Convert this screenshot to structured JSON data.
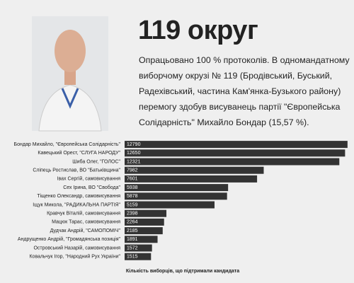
{
  "chart_data": {
    "type": "bar",
    "orientation": "horizontal",
    "title": "119 округ",
    "description": "Опрацьовано 100 % протоколів. В одномандатному виборчому окрузі № 119 (Бродівський, Буський, Радехівський, частина Кам'янка-Бузького району) перемогу здобув висуванець партії \"Європейська Солідарність\" Михайло Бондар (15,57 %).",
    "x_label": "Кількість виборців, що підтримали кандидата",
    "categories": [
      "Бондар Михайло, \"Європейська Солідарність\"",
      "Кавецький Орест, \"СЛУГА НАРОДУ\"",
      "Шиба Олег, \"ГОЛОС\"",
      "Сліпець Ростислав, ВО \"Батьківщина\"",
      "Івах Сергій, самовисування",
      "Сех Ірина, ВО \"Свобода\"",
      "Тіщенко Олександр, самовисування",
      "Іщук Микола, \"РАДИКАЛЬНА ПАРТІЯ\"",
      "Кравчук Віталій, самовисування",
      "Мацюк Тарас, самовисування",
      "Дудчак Андрій, \"САМОПОМІЧ\"",
      "Андрущенко Андрій, \"Громадянська позиція\"",
      "Островський Назарій, самовисування",
      "Ковальчук Ігор, \"Народний Рух України\""
    ],
    "values": [
      12790,
      12650,
      12321,
      7982,
      7601,
      5938,
      5878,
      5159,
      2398,
      2264,
      2185,
      1891,
      1572,
      1515
    ],
    "color": "#333333",
    "xlim": [
      0,
      13000
    ]
  }
}
